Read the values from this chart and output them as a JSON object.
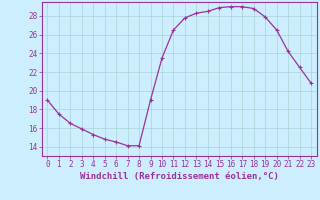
{
  "x": [
    0,
    1,
    2,
    3,
    4,
    5,
    6,
    7,
    8,
    9,
    10,
    11,
    12,
    13,
    14,
    15,
    16,
    17,
    18,
    19,
    20,
    21,
    22,
    23
  ],
  "y": [
    19.0,
    17.5,
    16.5,
    15.9,
    15.3,
    14.8,
    14.5,
    14.1,
    14.1,
    19.0,
    23.5,
    26.5,
    27.8,
    28.3,
    28.5,
    28.9,
    29.0,
    29.0,
    28.8,
    27.9,
    26.5,
    24.2,
    22.5,
    20.8
  ],
  "line_color": "#993399",
  "marker": "+",
  "marker_size": 3,
  "marker_lw": 0.8,
  "line_width": 0.9,
  "background_color": "#cceeff",
  "grid_color": "#aad4d4",
  "xlabel": "Windchill (Refroidissement éolien,°C)",
  "xlabel_fontsize": 6.5,
  "ylim": [
    13.0,
    29.5
  ],
  "xlim": [
    -0.5,
    23.5
  ],
  "yticks": [
    14,
    16,
    18,
    20,
    22,
    24,
    26,
    28
  ],
  "xticks": [
    0,
    1,
    2,
    3,
    4,
    5,
    6,
    7,
    8,
    9,
    10,
    11,
    12,
    13,
    14,
    15,
    16,
    17,
    18,
    19,
    20,
    21,
    22,
    23
  ],
  "tick_fontsize": 5.5
}
